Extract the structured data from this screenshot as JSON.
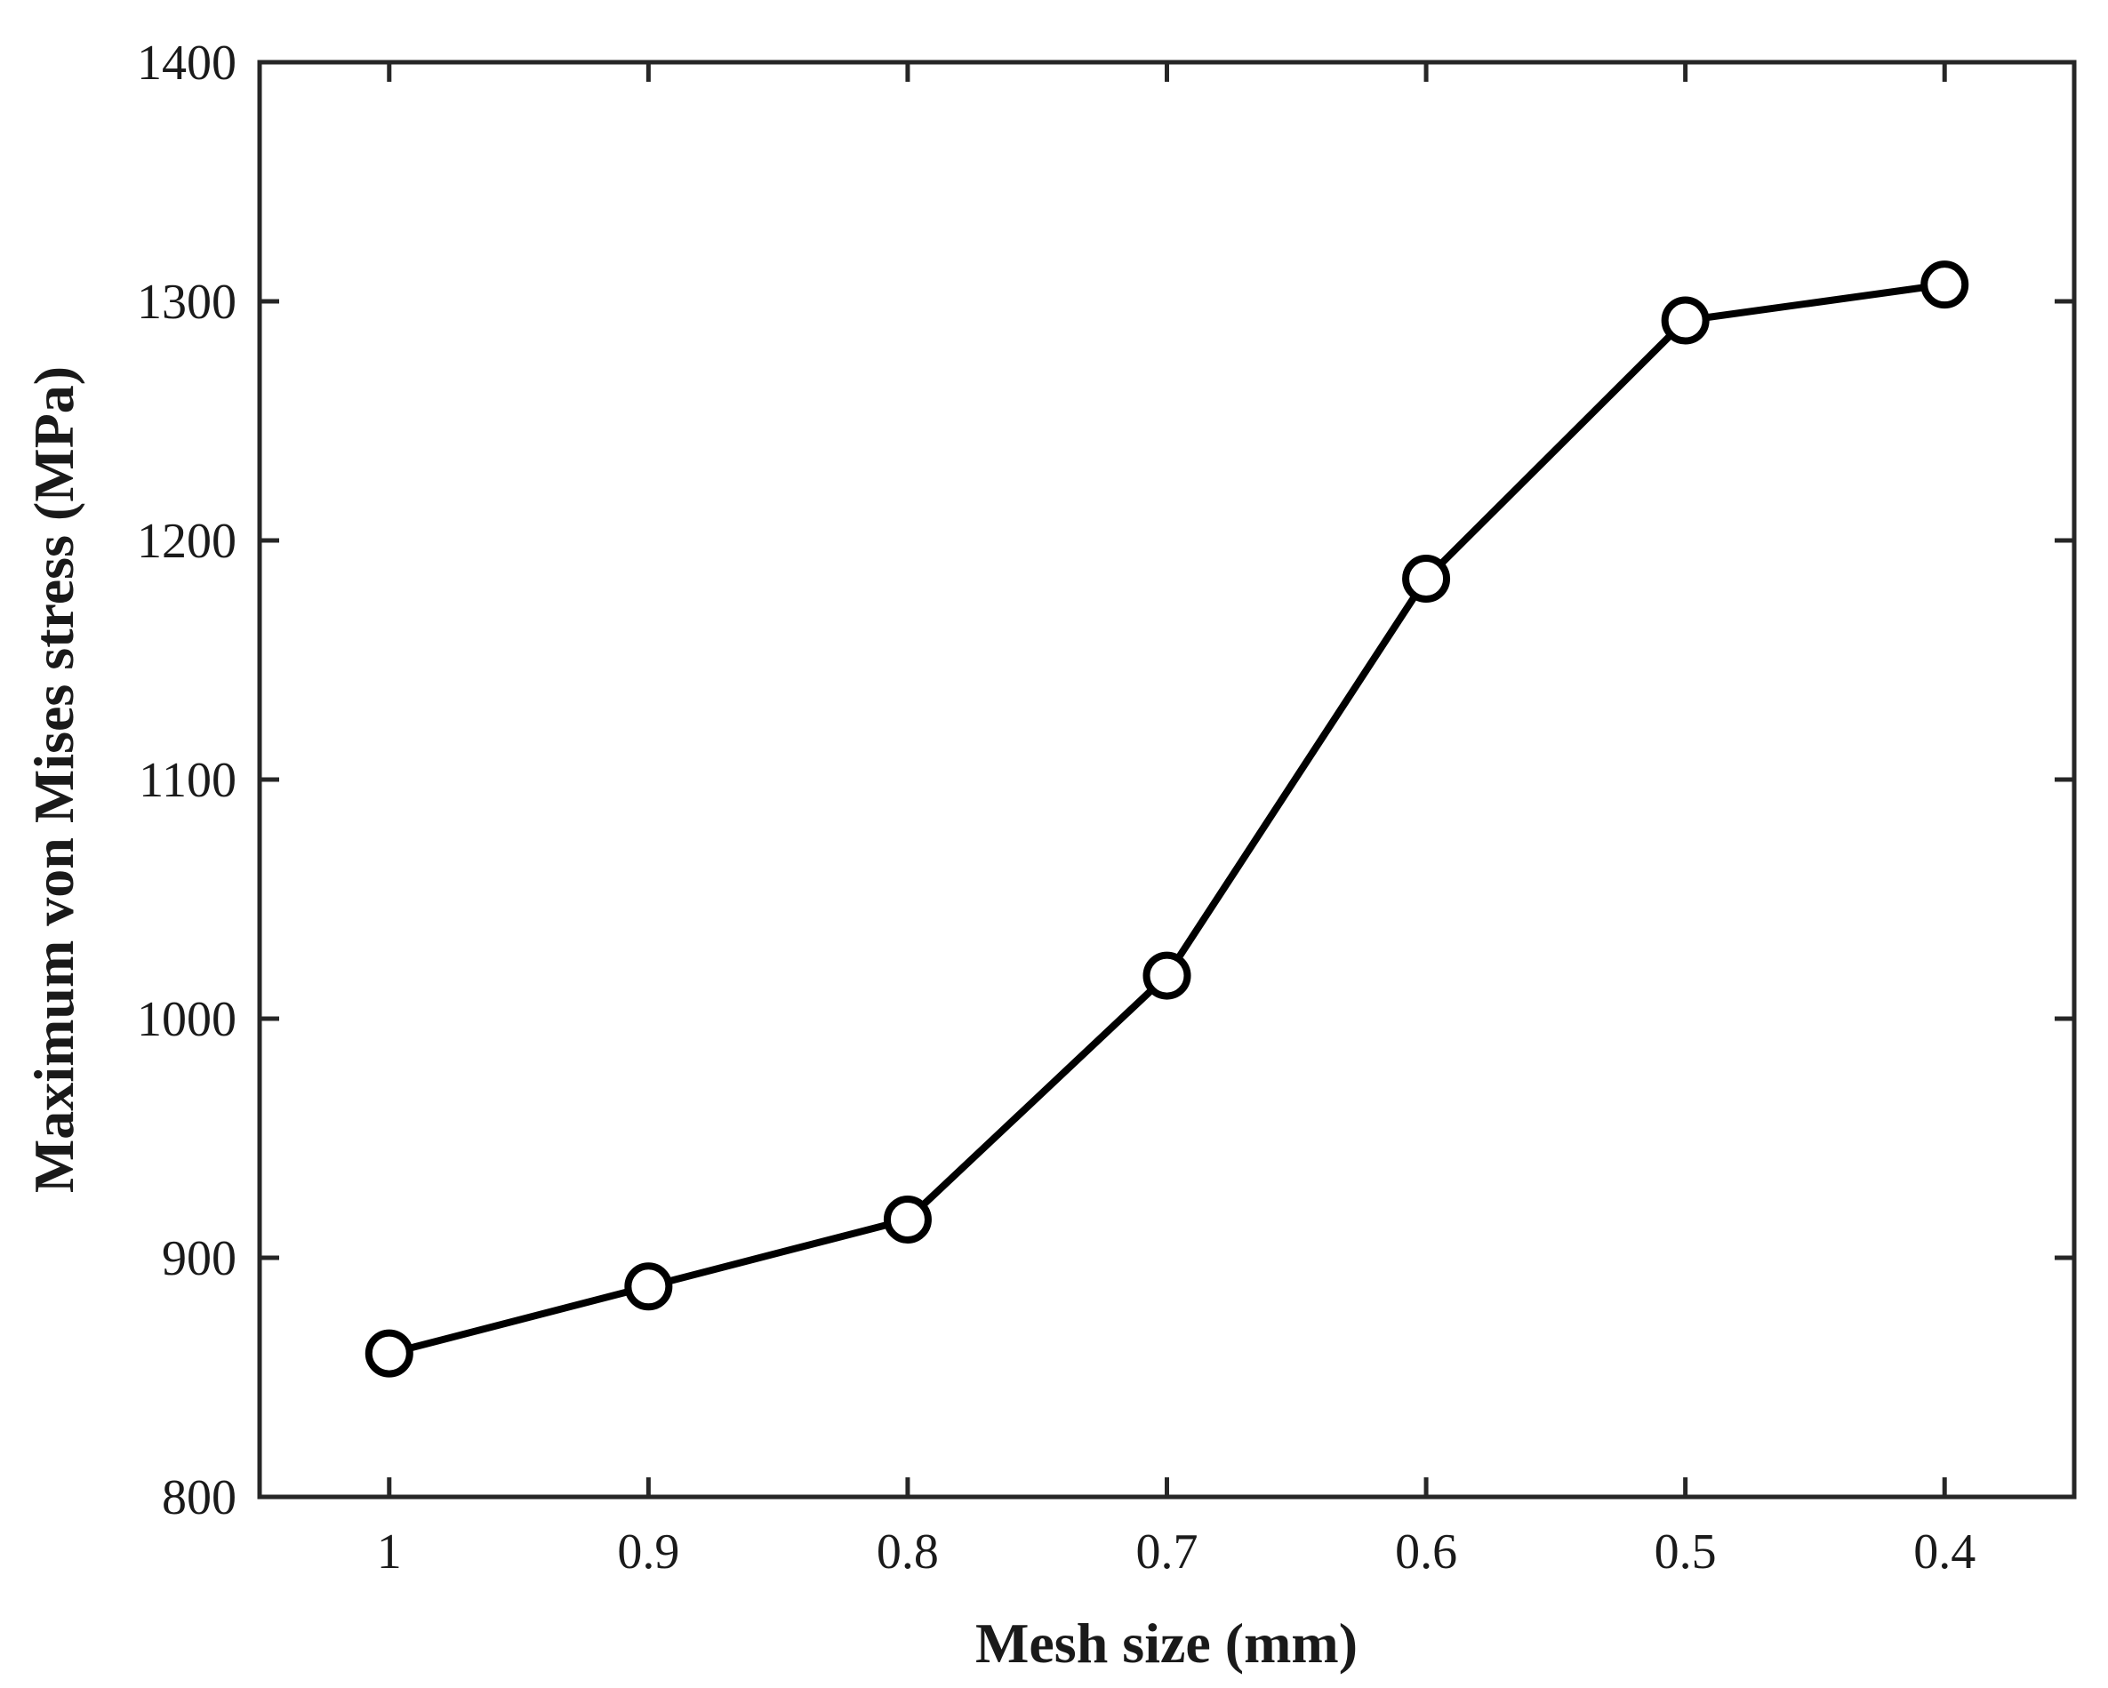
{
  "chart_data": {
    "type": "line",
    "title": "",
    "xlabel": "Mesh size (mm)",
    "ylabel": "Maximum von Mises stress (MPa)",
    "x_reversed": true,
    "xlim": [
      1.05,
      0.35
    ],
    "ylim": [
      800,
      1400
    ],
    "x_ticks": [
      1,
      0.9,
      0.8,
      0.7,
      0.6,
      0.5,
      0.4
    ],
    "x_tick_labels": [
      "1",
      "0.9",
      "0.8",
      "0.7",
      "0.6",
      "0.5",
      "0.4"
    ],
    "y_ticks": [
      800,
      900,
      1000,
      1100,
      1200,
      1300,
      1400
    ],
    "y_tick_labels": [
      "800",
      "900",
      "1000",
      "1100",
      "1200",
      "1300",
      "1400"
    ],
    "grid": false,
    "legend": "none",
    "line_color": "#000000",
    "marker": "open-circle",
    "series": [
      {
        "x": [
          1,
          0.9,
          0.8,
          0.7,
          0.6,
          0.5,
          0.4
        ],
        "y": [
          860,
          888,
          916,
          1018,
          1184,
          1292,
          1307
        ]
      }
    ]
  }
}
